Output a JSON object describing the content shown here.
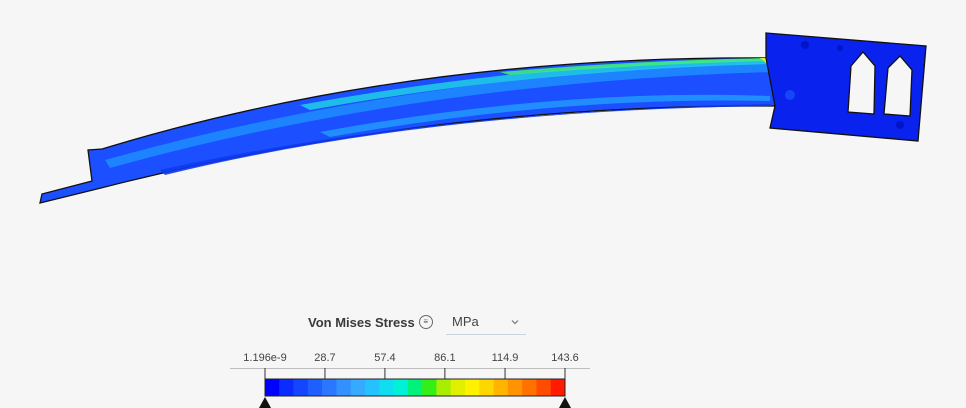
{
  "result": {
    "title": "Von Mises Stress",
    "info_icon": "list-icon",
    "unit": "MPa",
    "unit_dropdown_icon": "chevron-down-icon"
  },
  "legend": {
    "min": 0,
    "max": 143.6,
    "tick_labels": [
      "1.196e-9",
      "28.7",
      "57.4",
      "86.1",
      "114.9",
      "143.6"
    ],
    "tick_values": [
      0,
      28.7,
      57.4,
      86.1,
      114.9,
      143.6
    ],
    "colors": [
      "#0000ff",
      "#0a2cff",
      "#1446ff",
      "#1e5fff",
      "#2a78ff",
      "#3391ff",
      "#35aaff",
      "#26c2ff",
      "#10dcf2",
      "#00f0d8",
      "#00f27a",
      "#35ee16",
      "#a8ee00",
      "#e2f000",
      "#fff200",
      "#ffd700",
      "#ffb400",
      "#ff9400",
      "#ff7200",
      "#ff4c00",
      "#ff1a00"
    ]
  },
  "model": {
    "base_color": "#0b2be8",
    "gradient_stops": [
      "#0a2cff",
      "#1e5fff",
      "#26c2ff",
      "#10dcf2",
      "#35ee16"
    ]
  }
}
